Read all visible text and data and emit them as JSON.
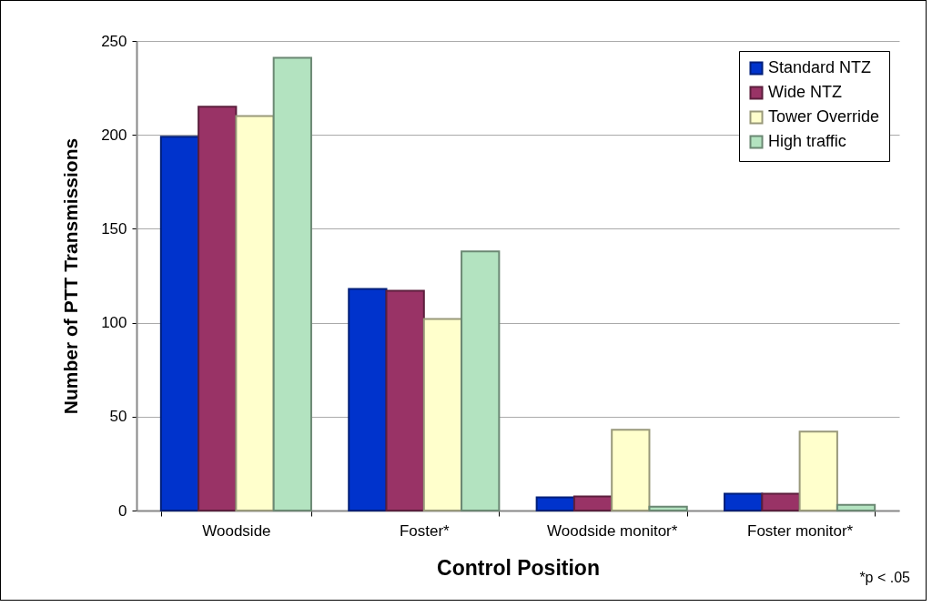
{
  "chart_data": {
    "type": "bar",
    "xlabel": "Control Position",
    "ylabel": "Number of PTT Transmissions",
    "categories": [
      "Woodside",
      "Foster*",
      "Woodside monitor*",
      "Foster monitor*"
    ],
    "series": [
      {
        "name": "Standard NTZ",
        "color": "#0033cc",
        "values": [
          199,
          118,
          7,
          9
        ]
      },
      {
        "name": "Wide NTZ",
        "color": "#993366",
        "values": [
          215,
          117,
          7.5,
          9
        ]
      },
      {
        "name": "Tower Override",
        "color": "#ffffcc",
        "values": [
          210,
          102,
          43,
          42
        ]
      },
      {
        "name": "High traffic",
        "color": "#b3e3c0",
        "values": [
          241,
          138,
          2,
          3
        ]
      }
    ],
    "ylim": [
      0,
      250
    ],
    "yticks": [
      0,
      50,
      100,
      150,
      200,
      250
    ],
    "grid": "y",
    "legend": "top right",
    "annotations": [
      "*p < .05"
    ]
  }
}
